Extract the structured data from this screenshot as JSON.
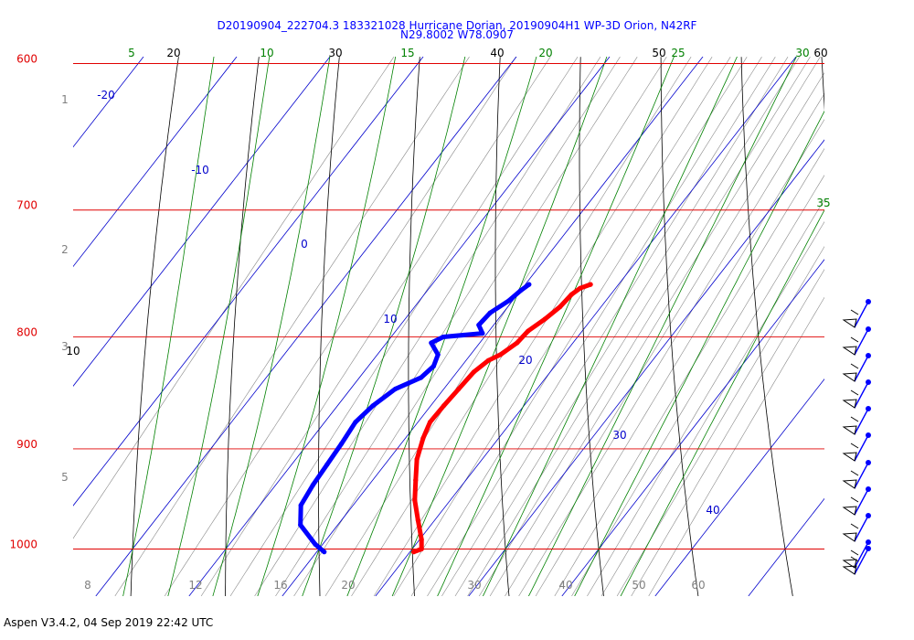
{
  "title_line1": "D20190904_222704.3 183321028 Hurricane Dorian, 20190904H1 WP-3D Orion, N42RF",
  "title_line2": "N29.8002 W78.0907",
  "footer": "Aspen V3.4.2, 04 Sep 2019  22:42 UTC",
  "colors": {
    "isobar": "#e00000",
    "isotherm": "#0000cc",
    "dry_adiabat": "#000000",
    "moist_adiabat": "#008000",
    "mixing_ratio": "#888888",
    "temperature": "#ff0000",
    "dewpoint": "#0000ff",
    "wind_barb": "#0000ff"
  },
  "chart_data": {
    "type": "skew-t",
    "pressure_levels_hpa": [
      "600",
      "700",
      "800",
      "900",
      "1000"
    ],
    "height_km_labels": [
      "1",
      "2",
      "3",
      "5"
    ],
    "isotherm_labels_c": [
      "-20",
      "-10",
      "0",
      "10",
      "20",
      "30",
      "40"
    ],
    "dry_adiabat_labels": [
      "20",
      "30",
      "40",
      "50",
      "60",
      "10"
    ],
    "moist_adiabat_labels": [
      "5",
      "10",
      "15",
      "20",
      "25",
      "30",
      "35"
    ],
    "mixing_ratio_labels": [
      "8",
      "12",
      "16",
      "20",
      "30",
      "40",
      "50",
      "60"
    ],
    "temperature_profile": [
      {
        "p": 757,
        "t": 17.0
      },
      {
        "p": 760,
        "t": 16.2
      },
      {
        "p": 765,
        "t": 15.8
      },
      {
        "p": 775,
        "t": 15.6
      },
      {
        "p": 785,
        "t": 15.0
      },
      {
        "p": 795,
        "t": 14.2
      },
      {
        "p": 805,
        "t": 14.0
      },
      {
        "p": 815,
        "t": 13.2
      },
      {
        "p": 820,
        "t": 12.4
      },
      {
        "p": 830,
        "t": 11.8
      },
      {
        "p": 845,
        "t": 11.6
      },
      {
        "p": 860,
        "t": 11.4
      },
      {
        "p": 875,
        "t": 11.3
      },
      {
        "p": 890,
        "t": 11.9
      },
      {
        "p": 910,
        "t": 13.0
      },
      {
        "p": 930,
        "t": 14.6
      },
      {
        "p": 950,
        "t": 16.2
      },
      {
        "p": 970,
        "t": 18.2
      },
      {
        "p": 990,
        "t": 20.2
      },
      {
        "p": 1000,
        "t": 21.0
      },
      {
        "p": 1003,
        "t": 20.4
      }
    ],
    "dewpoint_profile": [
      {
        "p": 757,
        "t": 10.4
      },
      {
        "p": 762,
        "t": 10.0
      },
      {
        "p": 770,
        "t": 9.6
      },
      {
        "p": 780,
        "t": 8.6
      },
      {
        "p": 790,
        "t": 8.4
      },
      {
        "p": 797,
        "t": 9.5
      },
      {
        "p": 800,
        "t": 5.6
      },
      {
        "p": 805,
        "t": 4.8
      },
      {
        "p": 815,
        "t": 6.5
      },
      {
        "p": 825,
        "t": 7.0
      },
      {
        "p": 835,
        "t": 6.6
      },
      {
        "p": 845,
        "t": 4.8
      },
      {
        "p": 860,
        "t": 3.8
      },
      {
        "p": 875,
        "t": 3.3
      },
      {
        "p": 895,
        "t": 3.6
      },
      {
        "p": 915,
        "t": 3.8
      },
      {
        "p": 935,
        "t": 4.0
      },
      {
        "p": 955,
        "t": 4.4
      },
      {
        "p": 975,
        "t": 6.0
      },
      {
        "p": 995,
        "t": 9.2
      },
      {
        "p": 1003,
        "t": 10.8
      }
    ],
    "wind_barb_levels_hpa": [
      780,
      800,
      820,
      840,
      860,
      880,
      900,
      920,
      945,
      975,
      1000
    ]
  }
}
